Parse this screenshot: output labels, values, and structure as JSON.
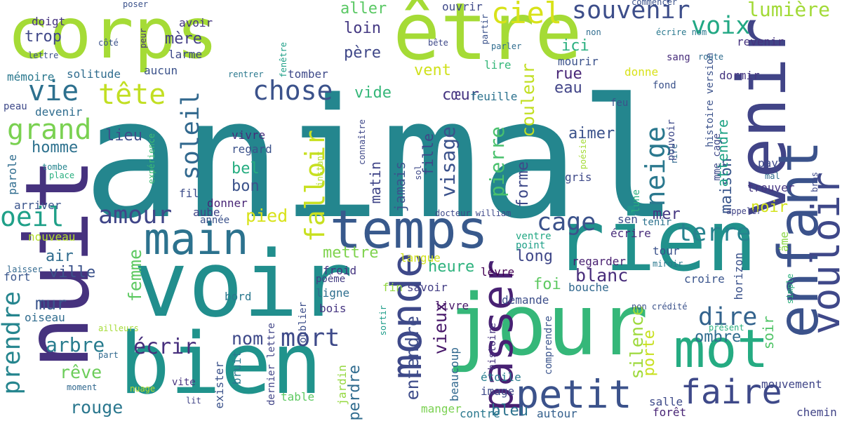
{
  "words": [
    {
      "text": "animal",
      "color": "#24868e",
      "vertical": false
    },
    {
      "text": "corps",
      "color": "#a5db36",
      "vertical": false
    },
    {
      "text": "être",
      "color": "#a5db36",
      "vertical": false
    },
    {
      "text": "nuit",
      "color": "#46327e",
      "vertical": true
    },
    {
      "text": "voir",
      "color": "#218e8d",
      "vertical": false
    },
    {
      "text": "jour",
      "color": "#35b779",
      "vertical": false
    },
    {
      "text": "bien",
      "color": "#20938c",
      "vertical": false
    },
    {
      "text": "rien",
      "color": "#21918c",
      "vertical": false
    },
    {
      "text": "venir",
      "color": "#414487",
      "vertical": true
    },
    {
      "text": "enfant",
      "color": "#3b528b",
      "vertical": true
    },
    {
      "text": "temps",
      "color": "#38598c",
      "vertical": false
    },
    {
      "text": "main",
      "color": "#2c728e",
      "vertical": false
    },
    {
      "text": "mot",
      "color": "#25ab82",
      "vertical": false
    },
    {
      "text": "vouloir",
      "color": "#3f4889",
      "vertical": true
    },
    {
      "text": "monde",
      "color": "#3e4989",
      "vertical": true
    },
    {
      "text": "passer",
      "color": "#482173",
      "vertical": true
    },
    {
      "text": "petit",
      "color": "#3b528b",
      "vertical": false
    },
    {
      "text": "faire",
      "color": "#3e4989",
      "vertical": false
    },
    {
      "text": "souvenir",
      "color": "#3d4e8a",
      "vertical": false
    },
    {
      "text": "ciel",
      "color": "#d8e219",
      "vertical": false
    },
    {
      "text": "vie",
      "color": "#2d708e",
      "vertical": false
    },
    {
      "text": "tête",
      "color": "#c2df23",
      "vertical": false
    },
    {
      "text": "chose",
      "color": "#3b528b",
      "vertical": false
    },
    {
      "text": "grand",
      "color": "#7ad151",
      "vertical": false
    },
    {
      "text": "soleil",
      "color": "#31688e",
      "vertical": true
    },
    {
      "text": "neige",
      "color": "#2a788e",
      "vertical": true
    },
    {
      "text": "voix",
      "color": "#22a884",
      "vertical": false
    },
    {
      "text": "lumière",
      "color": "#a2da37",
      "vertical": false
    },
    {
      "text": "oeil",
      "color": "#1fa088",
      "vertical": false
    },
    {
      "text": "amour",
      "color": "#404688",
      "vertical": false
    },
    {
      "text": "falloir",
      "color": "#c8e020",
      "vertical": true
    },
    {
      "text": "cage",
      "color": "#3b528b",
      "vertical": false
    },
    {
      "text": "terre",
      "color": "#26828e",
      "vertical": false
    },
    {
      "text": "dire",
      "color": "#33638d",
      "vertical": false
    },
    {
      "text": "prendre",
      "color": "#25858e",
      "vertical": true
    },
    {
      "text": "femme",
      "color": "#5ec962",
      "vertical": true
    },
    {
      "text": "mort",
      "color": "#3e4a89",
      "vertical": false
    },
    {
      "text": "écrir",
      "color": "#472f7d",
      "vertical": false
    },
    {
      "text": "arbre",
      "color": "#287c8e",
      "vertical": false
    },
    {
      "text": "rouge",
      "color": "#2a778e",
      "vertical": false
    },
    {
      "text": "rêve",
      "color": "#6ccd5a",
      "vertical": false
    },
    {
      "text": "mur",
      "color": "#3a548c",
      "vertical": false
    },
    {
      "text": "ville",
      "color": "#3b528b",
      "vertical": false
    },
    {
      "text": "air",
      "color": "#2f6c8e",
      "vertical": false
    },
    {
      "text": "homme",
      "color": "#2d718e",
      "vertical": false
    },
    {
      "text": "lieu",
      "color": "#3d4d8a",
      "vertical": false
    },
    {
      "text": "trop",
      "color": "#3f4788",
      "vertical": false
    },
    {
      "text": "mère",
      "color": "#433e85",
      "vertical": false
    },
    {
      "text": "loin",
      "color": "#443983",
      "vertical": false
    },
    {
      "text": "père",
      "color": "#3f4788",
      "vertical": false
    },
    {
      "text": "aller",
      "color": "#5ac864",
      "vertical": false
    },
    {
      "text": "vent",
      "color": "#d0e11c",
      "vertical": false
    },
    {
      "text": "cœur",
      "color": "#453581",
      "vertical": false
    },
    {
      "text": "vide",
      "color": "#35b779",
      "vertical": false
    },
    {
      "text": "ici",
      "color": "#29af7f",
      "vertical": false
    },
    {
      "text": "rue",
      "color": "#482677",
      "vertical": false
    },
    {
      "text": "eau",
      "color": "#414487",
      "vertical": false
    },
    {
      "text": "couleur",
      "color": "#c2df23",
      "vertical": true
    },
    {
      "text": "feuille",
      "color": "#2c728e",
      "vertical": false
    },
    {
      "text": "visage",
      "color": "#3b528b",
      "vertical": true
    },
    {
      "text": "pierre",
      "color": "#4ac16d",
      "vertical": true
    },
    {
      "text": "fille",
      "color": "#3f4788",
      "vertical": true
    },
    {
      "text": "jamais",
      "color": "#3a548c",
      "vertical": true
    },
    {
      "text": "matin",
      "color": "#404588",
      "vertical": true
    },
    {
      "text": "bel",
      "color": "#26ad81",
      "vertical": false
    },
    {
      "text": "bon",
      "color": "#3b528b",
      "vertical": false
    },
    {
      "text": "pied",
      "color": "#d8e219",
      "vertical": false
    },
    {
      "text": "mettre",
      "color": "#7fd34e",
      "vertical": false
    },
    {
      "text": "heure",
      "color": "#2db27d",
      "vertical": false
    },
    {
      "text": "foi",
      "color": "#5ec962",
      "vertical": false
    },
    {
      "text": "long",
      "color": "#3f4788",
      "vertical": false
    },
    {
      "text": "blanc",
      "color": "#472c7a",
      "vertical": false
    },
    {
      "text": "forme",
      "color": "#3e4989",
      "vertical": true
    },
    {
      "text": "aimer",
      "color": "#3b528b",
      "vertical": false
    },
    {
      "text": "noir",
      "color": "#d2e21b",
      "vertical": false
    },
    {
      "text": "mer",
      "color": "#453781",
      "vertical": false
    },
    {
      "text": "maison",
      "color": "#39568c",
      "vertical": true
    },
    {
      "text": "attendre",
      "color": "#20a386",
      "vertical": true
    },
    {
      "text": "ombre",
      "color": "#2f6c8e",
      "vertical": false
    },
    {
      "text": "silence",
      "color": "#9dd93b",
      "vertical": true
    },
    {
      "text": "porte",
      "color": "#c8e020",
      "vertical": true
    },
    {
      "text": "soir",
      "color": "#52c569",
      "vertical": true
    },
    {
      "text": "entendre",
      "color": "#3e4c8a",
      "vertical": true
    },
    {
      "text": "vieux",
      "color": "#48186a",
      "vertical": true
    },
    {
      "text": "nom",
      "color": "#3e4989",
      "vertical": false
    },
    {
      "text": "perdre",
      "color": "#2f6b8e",
      "vertical": true
    },
    {
      "text": "bleu",
      "color": "#2c728e",
      "vertical": false
    },
    {
      "text": "mouvement",
      "color": "#404688",
      "vertical": false
    },
    {
      "text": "chemin",
      "color": "#414487",
      "vertical": false
    },
    {
      "text": "forêt",
      "color": "#482475",
      "vertical": false
    },
    {
      "text": "salle",
      "color": "#3e4a89",
      "vertical": false
    },
    {
      "text": "autour",
      "color": "#34608d",
      "vertical": false
    },
    {
      "text": "contre",
      "color": "#2a788e",
      "vertical": false
    },
    {
      "text": "manger",
      "color": "#7ad151",
      "vertical": false
    },
    {
      "text": "image",
      "color": "#3e4989",
      "vertical": false
    },
    {
      "text": "étoile",
      "color": "#287d8e",
      "vertical": false
    },
    {
      "text": "beaucoup",
      "color": "#31688e",
      "vertical": true
    },
    {
      "text": "table",
      "color": "#5ec962",
      "vertical": false
    },
    {
      "text": "jardin",
      "color": "#95d840",
      "vertical": true
    },
    {
      "text": "lit",
      "color": "#414487",
      "vertical": false
    },
    {
      "text": "nuage",
      "color": "#b5de2b",
      "vertical": false
    },
    {
      "text": "moment",
      "color": "#31688e",
      "vertical": false
    },
    {
      "text": "vite",
      "color": "#46337f",
      "vertical": false
    },
    {
      "text": "exister",
      "color": "#3b528b",
      "vertical": true
    },
    {
      "text": "bruit",
      "color": "#2a778e",
      "vertical": true
    },
    {
      "text": "dernier lettre",
      "color": "#414487",
      "vertical": true
    },
    {
      "text": "oublier",
      "color": "#3d4e8a",
      "vertical": true
    },
    {
      "text": "sortir",
      "color": "#1e9c89",
      "vertical": true
    },
    {
      "text": "histoire",
      "color": "#46337f",
      "vertical": true
    },
    {
      "text": "comprendre",
      "color": "#3a548c",
      "vertical": true
    },
    {
      "text": "part",
      "color": "#31688e",
      "vertical": false
    },
    {
      "text": "ailleurs",
      "color": "#a5db36",
      "vertical": false
    },
    {
      "text": "oiseau",
      "color": "#2f6c8e",
      "vertical": false
    },
    {
      "text": "fort",
      "color": "#39568c",
      "vertical": false
    },
    {
      "text": "laisser",
      "color": "#31688e",
      "vertical": false
    },
    {
      "text": "nouveau",
      "color": "#b5de2b",
      "vertical": false
    },
    {
      "text": "arriver",
      "color": "#3a548c",
      "vertical": false
    },
    {
      "text": "parole",
      "color": "#2f6c8e",
      "vertical": true
    },
    {
      "text": "tombe",
      "color": "#25848e",
      "vertical": false
    },
    {
      "text": "place",
      "color": "#29af7f",
      "vertical": false
    },
    {
      "text": "fil",
      "color": "#3d4d8a",
      "vertical": false
    },
    {
      "text": "aube",
      "color": "#414487",
      "vertical": false
    },
    {
      "text": "année",
      "color": "#3b528b",
      "vertical": false
    },
    {
      "text": "donner",
      "color": "#482576",
      "vertical": false
    },
    {
      "text": "vivre",
      "color": "#472d7b",
      "vertical": false
    },
    {
      "text": "regard",
      "color": "#3b528b",
      "vertical": false
    },
    {
      "text": "expérience",
      "color": "#3ebc73",
      "vertical": true
    },
    {
      "text": "instant",
      "color": "#b5de2b",
      "vertical": true
    },
    {
      "text": "connaître",
      "color": "#3f4889",
      "vertical": true
    },
    {
      "text": "sol",
      "color": "#3e4989",
      "vertical": true
    },
    {
      "text": "froid",
      "color": "#453581",
      "vertical": false
    },
    {
      "text": "poème",
      "color": "#433d84",
      "vertical": false
    },
    {
      "text": "ligne",
      "color": "#2e6e8e",
      "vertical": false
    },
    {
      "text": "bois",
      "color": "#453581",
      "vertical": false
    },
    {
      "text": "fin",
      "color": "#93d741",
      "vertical": false
    },
    {
      "text": "savoir",
      "color": "#433e85",
      "vertical": false
    },
    {
      "text": "livre",
      "color": "#48186a",
      "vertical": false
    },
    {
      "text": "bord",
      "color": "#2a788e",
      "vertical": false
    },
    {
      "text": "langue",
      "color": "#d0e11c",
      "vertical": false
    },
    {
      "text": "lèvre",
      "color": "#440154",
      "vertical": false
    },
    {
      "text": "demande",
      "color": "#3d4e8a",
      "vertical": false
    },
    {
      "text": "bouche",
      "color": "#31688e",
      "vertical": false
    },
    {
      "text": "regarder",
      "color": "#481f70",
      "vertical": false
    },
    {
      "text": "point",
      "color": "#1fa088",
      "vertical": false
    },
    {
      "text": "ventre",
      "color": "#22a884",
      "vertical": false
    },
    {
      "text": "écrire",
      "color": "#472c7a",
      "vertical": false
    },
    {
      "text": "tenir",
      "color": "#2c728e",
      "vertical": false
    },
    {
      "text": "tour",
      "color": "#3b528b",
      "vertical": false
    },
    {
      "text": "miroir",
      "color": "#2a788e",
      "vertical": false
    },
    {
      "text": "croire",
      "color": "#3a548c",
      "vertical": false
    },
    {
      "text": "horizon",
      "color": "#3b528b",
      "vertical": true
    },
    {
      "text": "âme",
      "color": "#8bd646",
      "vertical": true
    },
    {
      "text": "simple",
      "color": "#2db27d",
      "vertical": true
    },
    {
      "text": "non crédité",
      "color": "#3b528b",
      "vertical": false
    },
    {
      "text": "présent",
      "color": "#29af7f",
      "vertical": false
    },
    {
      "text": "sen",
      "color": "#3d4d8a",
      "vertical": false
    },
    {
      "text": "lune",
      "color": "#29af7f",
      "vertical": true
    },
    {
      "text": "appeler",
      "color": "#414487",
      "vertical": false
    },
    {
      "text": "trouver",
      "color": "#453581",
      "vertical": false
    },
    {
      "text": "pay",
      "color": "#3e4a89",
      "vertical": false
    },
    {
      "text": "rire",
      "color": "#31688e",
      "vertical": true
    },
    {
      "text": "mal",
      "color": "#2f6c8e",
      "vertical": false
    },
    {
      "text": "bras",
      "color": "#3e4989",
      "vertical": true
    },
    {
      "text": "poésie",
      "color": "#a5db36",
      "vertical": true
    },
    {
      "text": "gris",
      "color": "#3e4989",
      "vertical": false
    },
    {
      "text": "docteur william",
      "color": "#3e4989",
      "vertical": false
    },
    {
      "text": "pouvoir",
      "color": "#3e4989",
      "vertical": true
    },
    {
      "text": "histoire version",
      "color": "#3b528b",
      "vertical": true
    },
    {
      "text": "mme cage",
      "color": "#3e4989",
      "vertical": true
    },
    {
      "text": "feu",
      "color": "#3b528b",
      "vertical": false
    },
    {
      "text": "fond",
      "color": "#3b528b",
      "vertical": false
    },
    {
      "text": "dormir",
      "color": "#453581",
      "vertical": false
    },
    {
      "text": "sang",
      "color": "#472c7a",
      "vertical": false
    },
    {
      "text": "route",
      "color": "#2f6c8e",
      "vertical": false
    },
    {
      "text": "revenir",
      "color": "#46337f",
      "vertical": false
    },
    {
      "text": "non",
      "color": "#2f6c8e",
      "vertical": false
    },
    {
      "text": "écrire nom",
      "color": "#2a788e",
      "vertical": false
    },
    {
      "text": "commencer",
      "color": "#3b528b",
      "vertical": false
    },
    {
      "text": "donne",
      "color": "#d8e219",
      "vertical": false
    },
    {
      "text": "mourir",
      "color": "#3b528b",
      "vertical": false
    },
    {
      "text": "lire",
      "color": "#35b779",
      "vertical": false
    },
    {
      "text": "parler",
      "color": "#2f6c8e",
      "vertical": false
    },
    {
      "text": "bête",
      "color": "#3e4989",
      "vertical": false
    },
    {
      "text": "partir",
      "color": "#3b528b",
      "vertical": true
    },
    {
      "text": "ouvrir",
      "color": "#3e4989",
      "vertical": false
    },
    {
      "text": "poser",
      "color": "#3b528b",
      "vertical": false
    },
    {
      "text": "doigt",
      "color": "#46337f",
      "vertical": false
    },
    {
      "text": "avoir",
      "color": "#453581",
      "vertical": false
    },
    {
      "text": "larme",
      "color": "#3e4989",
      "vertical": false
    },
    {
      "text": "peur",
      "color": "#46337f",
      "vertical": true
    },
    {
      "text": "côté",
      "color": "#3b528b",
      "vertical": false
    },
    {
      "text": "lettre",
      "color": "#3b528b",
      "vertical": false
    },
    {
      "text": "mémoire",
      "color": "#2a788e",
      "vertical": false
    },
    {
      "text": "solitude",
      "color": "#2f6c8e",
      "vertical": false
    },
    {
      "text": "aucun",
      "color": "#3b528b",
      "vertical": false
    },
    {
      "text": "tomber",
      "color": "#3e4989",
      "vertical": false
    },
    {
      "text": "rentrer",
      "color": "#2a788e",
      "vertical": false
    },
    {
      "text": "fenêtre",
      "color": "#1fa088",
      "vertical": true
    },
    {
      "text": "peau",
      "color": "#3e4989",
      "vertical": false
    },
    {
      "text": "devenir",
      "color": "#2f6c8e",
      "vertical": false
    }
  ]
}
